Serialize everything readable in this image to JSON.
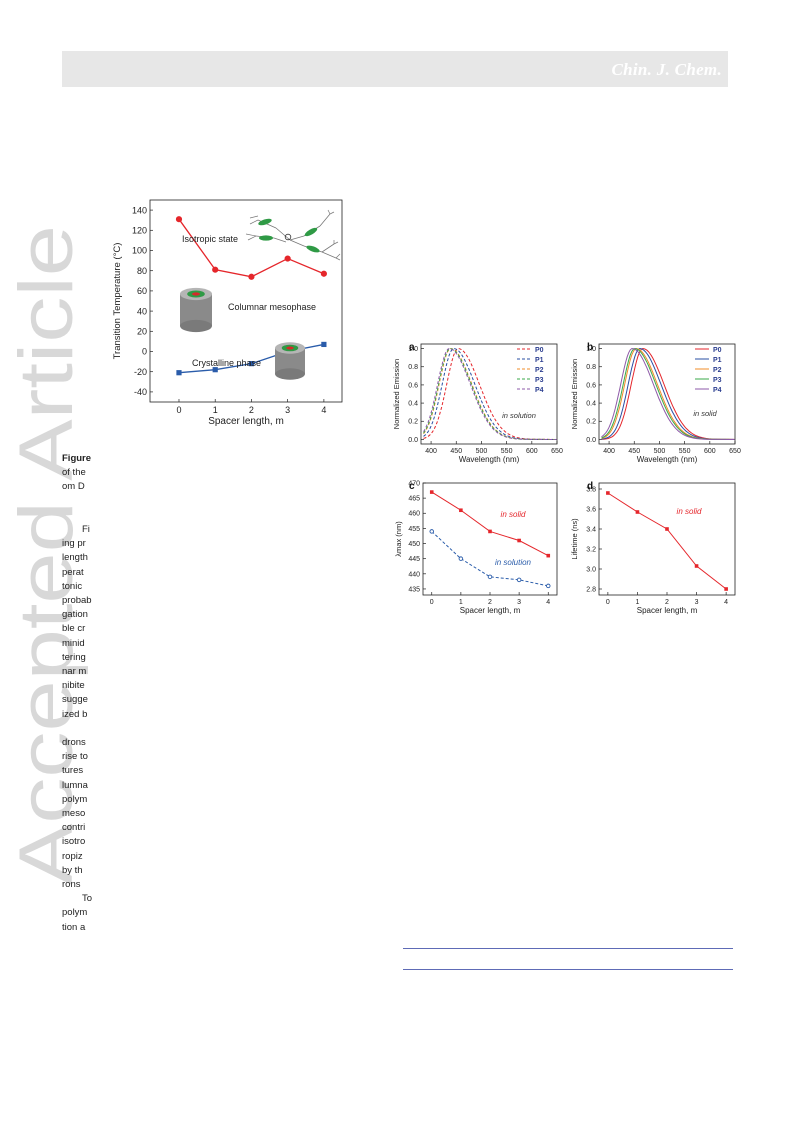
{
  "header": {
    "journal": "Chin. J. Chem."
  },
  "watermark": {
    "text": "Accepted Article",
    "color": "#d8d8d8"
  },
  "body_fragments": [
    "Figure",
    "of the",
    "om D",
    "",
    "",
    "Fi",
    "ing pr",
    "length",
    "perat",
    "tonic",
    "probab",
    "gation",
    "ble cr",
    "minid",
    "tering",
    "nar m",
    "nibite",
    "sugge",
    "ized b",
    "",
    "drons",
    "rise to",
    "tures",
    "lumna",
    "polym",
    "meso",
    "contri",
    "isotro",
    "ropiz",
    "by th",
    "rons",
    "To",
    "polym",
    "tion a"
  ],
  "figure1": {
    "chart_data": {
      "type": "line",
      "xlabel": "Spacer length, m",
      "ylabel": "Transition Temperature (°C)",
      "x": [
        0,
        1,
        2,
        3,
        4
      ],
      "xticks": [
        "0",
        "1",
        "2",
        "3",
        "4"
      ],
      "yticks": [
        "-40",
        "-20",
        "0",
        "20",
        "40",
        "60",
        "80",
        "100",
        "120",
        "140"
      ],
      "xlim": [
        -0.8,
        4.5
      ],
      "ylim": [
        -50,
        150
      ],
      "grid": false,
      "series": [
        {
          "values": [
            131,
            81,
            74,
            92,
            77
          ],
          "color": "#e5262b",
          "marker": "circle"
        },
        {
          "values": [
            -21,
            -18,
            -12,
            0,
            7
          ],
          "color": "#2a5caa",
          "marker": "square"
        }
      ],
      "annotations": [
        "Isotropic state",
        "Columnar mesophase",
        "Crystalline phase"
      ]
    }
  },
  "figure2": {
    "panels": [
      {
        "label": "a",
        "chart_data": {
          "type": "line",
          "xlabel": "Wavelength (nm)",
          "ylabel": "Normalized Emission",
          "xticks": [
            "400",
            "450",
            "500",
            "550",
            "600",
            "650"
          ],
          "yticks": [
            "0.0",
            "0.2",
            "0.4",
            "0.6",
            "0.8",
            "1.0"
          ],
          "xlim": [
            380,
            650
          ],
          "ylim": [
            -0.05,
            1.05
          ],
          "annotation": "in solution",
          "legend_position": "top-right",
          "line_style": "dashed",
          "series": [
            {
              "name": "P0",
              "peak": 454,
              "color": "#e5262b"
            },
            {
              "name": "P1",
              "peak": 445,
              "color": "#2a4fa3"
            },
            {
              "name": "P2",
              "peak": 439,
              "color": "#f28c28"
            },
            {
              "name": "P3",
              "peak": 438,
              "color": "#3aa84a"
            },
            {
              "name": "P4",
              "peak": 436,
              "color": "#8e5aa8"
            }
          ]
        }
      },
      {
        "label": "b",
        "chart_data": {
          "type": "line",
          "xlabel": "Wavelength (nm)",
          "ylabel": "Normalized Emission",
          "xticks": [
            "400",
            "450",
            "500",
            "550",
            "600",
            "650"
          ],
          "yticks": [
            "0.0",
            "0.2",
            "0.4",
            "0.6",
            "0.8",
            "1.0"
          ],
          "xlim": [
            380,
            650
          ],
          "ylim": [
            -0.05,
            1.05
          ],
          "annotation": "in solid",
          "legend_position": "top-right",
          "line_style": "solid",
          "series": [
            {
              "name": "P0",
              "peak": 467,
              "color": "#e5262b"
            },
            {
              "name": "P1",
              "peak": 461,
              "color": "#2a4fa3"
            },
            {
              "name": "P2",
              "peak": 454,
              "color": "#f28c28"
            },
            {
              "name": "P3",
              "peak": 451,
              "color": "#3aa84a"
            },
            {
              "name": "P4",
              "peak": 446,
              "color": "#8e5aa8"
            }
          ]
        }
      },
      {
        "label": "c",
        "chart_data": {
          "type": "line",
          "xlabel": "Spacer length, m",
          "ylabel": "λmax (nm)",
          "x": [
            0,
            1,
            2,
            3,
            4
          ],
          "xticks": [
            "0",
            "1",
            "2",
            "3",
            "4"
          ],
          "yticks": [
            "435",
            "440",
            "445",
            "450",
            "455",
            "460",
            "465",
            "470"
          ],
          "xlim": [
            -0.3,
            4.3
          ],
          "ylim": [
            433,
            470
          ],
          "series": [
            {
              "name": "in solid",
              "values": [
                467,
                461,
                454,
                451,
                446
              ],
              "color": "#e5262b",
              "dashed": false,
              "marker": "square"
            },
            {
              "name": "in solution",
              "values": [
                454,
                445,
                439,
                438,
                436
              ],
              "color": "#2a5caa",
              "dashed": true,
              "marker": "circle"
            }
          ]
        }
      },
      {
        "label": "d",
        "chart_data": {
          "type": "line",
          "xlabel": "Spacer length, m",
          "ylabel": "Lifetime (ns)",
          "x": [
            0,
            1,
            2,
            3,
            4
          ],
          "xticks": [
            "0",
            "1",
            "2",
            "3",
            "4"
          ],
          "yticks": [
            "2.8",
            "3.0",
            "3.2",
            "3.4",
            "3.6",
            "3.8"
          ],
          "xlim": [
            -0.3,
            4.3
          ],
          "ylim": [
            2.74,
            3.86
          ],
          "annotation": "in solid",
          "series": [
            {
              "values": [
                3.76,
                3.57,
                3.4,
                3.03,
                2.8
              ],
              "color": "#e5262b",
              "marker": "square"
            }
          ]
        }
      }
    ]
  }
}
